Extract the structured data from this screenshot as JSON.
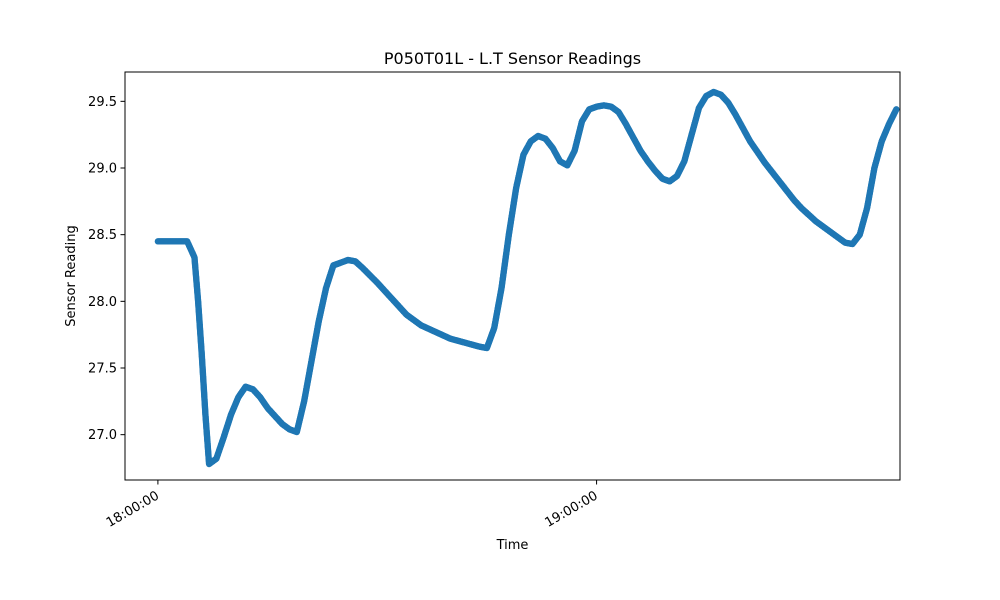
{
  "chart_data": {
    "type": "scatter",
    "title": "P050T01L - L.T Sensor Readings",
    "xlabel": "Time",
    "ylabel": "Sensor Reading",
    "x_unit": "time of day",
    "xlim": [
      "17:55:30",
      "19:41:30"
    ],
    "ylim": [
      26.66,
      29.72
    ],
    "x_ticks": [
      "18:00:00",
      "19:00:00"
    ],
    "y_ticks": [
      "27.0",
      "27.5",
      "28.0",
      "28.5",
      "29.0",
      "29.5"
    ],
    "grid": false,
    "legend": "none",
    "marker_color": "#1f77b4",
    "series": [
      {
        "points": [
          [
            "18:00:00",
            28.45
          ],
          [
            "18:02:00",
            28.45
          ],
          [
            "18:04:00",
            28.45
          ],
          [
            "18:05:00",
            28.33
          ],
          [
            "18:05:30",
            28.0
          ],
          [
            "18:06:00",
            27.6
          ],
          [
            "18:06:30",
            27.15
          ],
          [
            "18:07:00",
            26.78
          ],
          [
            "18:08:00",
            26.82
          ],
          [
            "18:09:00",
            26.98
          ],
          [
            "18:10:00",
            27.15
          ],
          [
            "18:11:00",
            27.28
          ],
          [
            "18:12:00",
            27.36
          ],
          [
            "18:13:00",
            27.34
          ],
          [
            "18:14:00",
            27.28
          ],
          [
            "18:15:00",
            27.2
          ],
          [
            "18:16:00",
            27.14
          ],
          [
            "18:17:00",
            27.08
          ],
          [
            "18:18:00",
            27.04
          ],
          [
            "18:19:00",
            27.02
          ],
          [
            "18:20:00",
            27.25
          ],
          [
            "18:21:00",
            27.55
          ],
          [
            "18:22:00",
            27.85
          ],
          [
            "18:23:00",
            28.1
          ],
          [
            "18:24:00",
            28.27
          ],
          [
            "18:25:00",
            28.29
          ],
          [
            "18:26:00",
            28.31
          ],
          [
            "18:27:00",
            28.3
          ],
          [
            "18:28:00",
            28.25
          ],
          [
            "18:30:00",
            28.14
          ],
          [
            "18:32:00",
            28.02
          ],
          [
            "18:34:00",
            27.9
          ],
          [
            "18:36:00",
            27.82
          ],
          [
            "18:38:00",
            27.77
          ],
          [
            "18:40:00",
            27.72
          ],
          [
            "18:42:00",
            27.69
          ],
          [
            "18:44:00",
            27.66
          ],
          [
            "18:45:00",
            27.65
          ],
          [
            "18:46:00",
            27.8
          ],
          [
            "18:47:00",
            28.1
          ],
          [
            "18:48:00",
            28.5
          ],
          [
            "18:49:00",
            28.85
          ],
          [
            "18:50:00",
            29.1
          ],
          [
            "18:51:00",
            29.2
          ],
          [
            "18:52:00",
            29.24
          ],
          [
            "18:53:00",
            29.22
          ],
          [
            "18:54:00",
            29.15
          ],
          [
            "18:55:00",
            29.05
          ],
          [
            "18:56:00",
            29.02
          ],
          [
            "18:57:00",
            29.13
          ],
          [
            "18:58:00",
            29.35
          ],
          [
            "18:59:00",
            29.44
          ],
          [
            "19:00:00",
            29.46
          ],
          [
            "19:01:00",
            29.47
          ],
          [
            "19:02:00",
            29.46
          ],
          [
            "19:03:00",
            29.42
          ],
          [
            "19:04:00",
            29.33
          ],
          [
            "19:05:00",
            29.23
          ],
          [
            "19:06:00",
            29.13
          ],
          [
            "19:07:00",
            29.05
          ],
          [
            "19:08:00",
            28.98
          ],
          [
            "19:09:00",
            28.92
          ],
          [
            "19:10:00",
            28.9
          ],
          [
            "19:11:00",
            28.94
          ],
          [
            "19:12:00",
            29.05
          ],
          [
            "19:13:00",
            29.25
          ],
          [
            "19:14:00",
            29.45
          ],
          [
            "19:15:00",
            29.54
          ],
          [
            "19:16:00",
            29.57
          ],
          [
            "19:17:00",
            29.55
          ],
          [
            "19:18:00",
            29.49
          ],
          [
            "19:19:00",
            29.4
          ],
          [
            "19:20:00",
            29.3
          ],
          [
            "19:21:00",
            29.2
          ],
          [
            "19:22:00",
            29.12
          ],
          [
            "19:23:00",
            29.04
          ],
          [
            "19:24:00",
            28.97
          ],
          [
            "19:25:00",
            28.9
          ],
          [
            "19:26:00",
            28.83
          ],
          [
            "19:27:00",
            28.76
          ],
          [
            "19:28:00",
            28.7
          ],
          [
            "19:29:00",
            28.65
          ],
          [
            "19:30:00",
            28.6
          ],
          [
            "19:31:00",
            28.56
          ],
          [
            "19:32:00",
            28.52
          ],
          [
            "19:33:00",
            28.48
          ],
          [
            "19:34:00",
            28.44
          ],
          [
            "19:35:00",
            28.43
          ],
          [
            "19:36:00",
            28.5
          ],
          [
            "19:37:00",
            28.7
          ],
          [
            "19:38:00",
            29.0
          ],
          [
            "19:39:00",
            29.2
          ],
          [
            "19:40:00",
            29.33
          ],
          [
            "19:41:00",
            29.44
          ]
        ]
      }
    ]
  }
}
